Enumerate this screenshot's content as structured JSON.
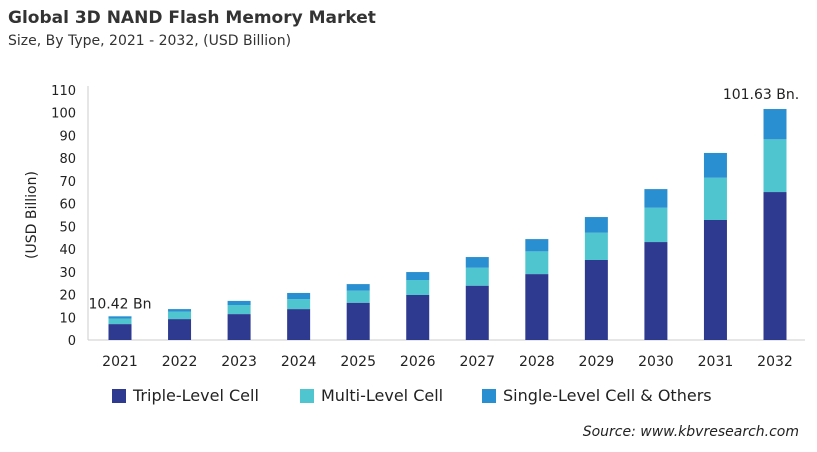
{
  "title": "Global 3D NAND Flash Memory Market",
  "subtitle": "Size, By Type, 2021 - 2032, (USD Billion)",
  "source": "Source: www.kbvresearch.com",
  "chart_data": {
    "type": "bar",
    "stacked": true,
    "title": "Global 3D NAND Flash Memory Market",
    "xlabel": "",
    "ylabel": "(USD Billion)",
    "ylim": [
      0,
      110
    ],
    "yticks": [
      0,
      10,
      20,
      30,
      40,
      50,
      60,
      70,
      80,
      90,
      100,
      110
    ],
    "grid": false,
    "legend_position": "bottom",
    "categories": [
      "2021",
      "2022",
      "2023",
      "2024",
      "2025",
      "2026",
      "2027",
      "2028",
      "2029",
      "2030",
      "2031",
      "2032"
    ],
    "series": [
      {
        "name": "Triple-Level Cell",
        "color": "#2e3990",
        "values": [
          7.0,
          9.2,
          11.4,
          13.6,
          16.4,
          19.8,
          23.9,
          29.0,
          35.2,
          43.1,
          52.8,
          65.1
        ]
      },
      {
        "name": "Multi-Level Cell",
        "color": "#4ec5cf",
        "values": [
          2.4,
          3.3,
          4.0,
          4.4,
          5.3,
          6.6,
          7.9,
          10.0,
          12.0,
          15.1,
          18.6,
          23.2
        ]
      },
      {
        "name": "Single-Level Cell & Others",
        "color": "#2a8fd0",
        "values": [
          1.02,
          1.1,
          1.8,
          2.7,
          2.9,
          3.5,
          4.7,
          5.4,
          6.9,
          8.2,
          10.9,
          13.33
        ]
      }
    ],
    "annotations": [
      {
        "category": "2021",
        "text": "10.42 Bn"
      },
      {
        "category": "2032",
        "text": "101.63 Bn."
      }
    ]
  }
}
